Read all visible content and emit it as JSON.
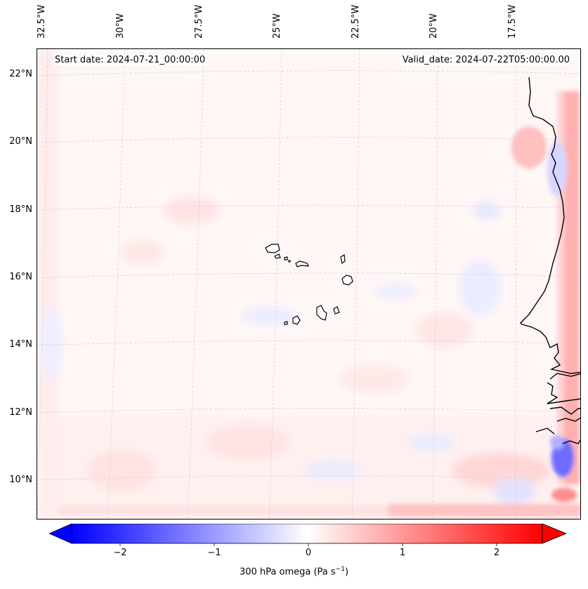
{
  "header": {
    "start_date": "Start date: 2024-07-21_00:00:00",
    "valid_date": "Valid_date: 2024-07-22T05:00:00.00"
  },
  "axes": {
    "longitude_labels": [
      "32.5°W",
      "30°W",
      "27.5°W",
      "25°W",
      "22.5°W",
      "20°W",
      "17.5°W"
    ],
    "latitude_labels": [
      "22°N",
      "20°N",
      "18°N",
      "16°N",
      "14°N",
      "12°N",
      "10°N"
    ]
  },
  "colorbar": {
    "ticks": [
      "−2",
      "−1",
      "0",
      "1",
      "2"
    ],
    "label_text": "300 hPa omega (Pa s",
    "label_superscript": "−1",
    "label_close": ")",
    "min_color": "#0000ff",
    "mid_color": "#ffffff",
    "max_color": "#ff0000"
  }
}
